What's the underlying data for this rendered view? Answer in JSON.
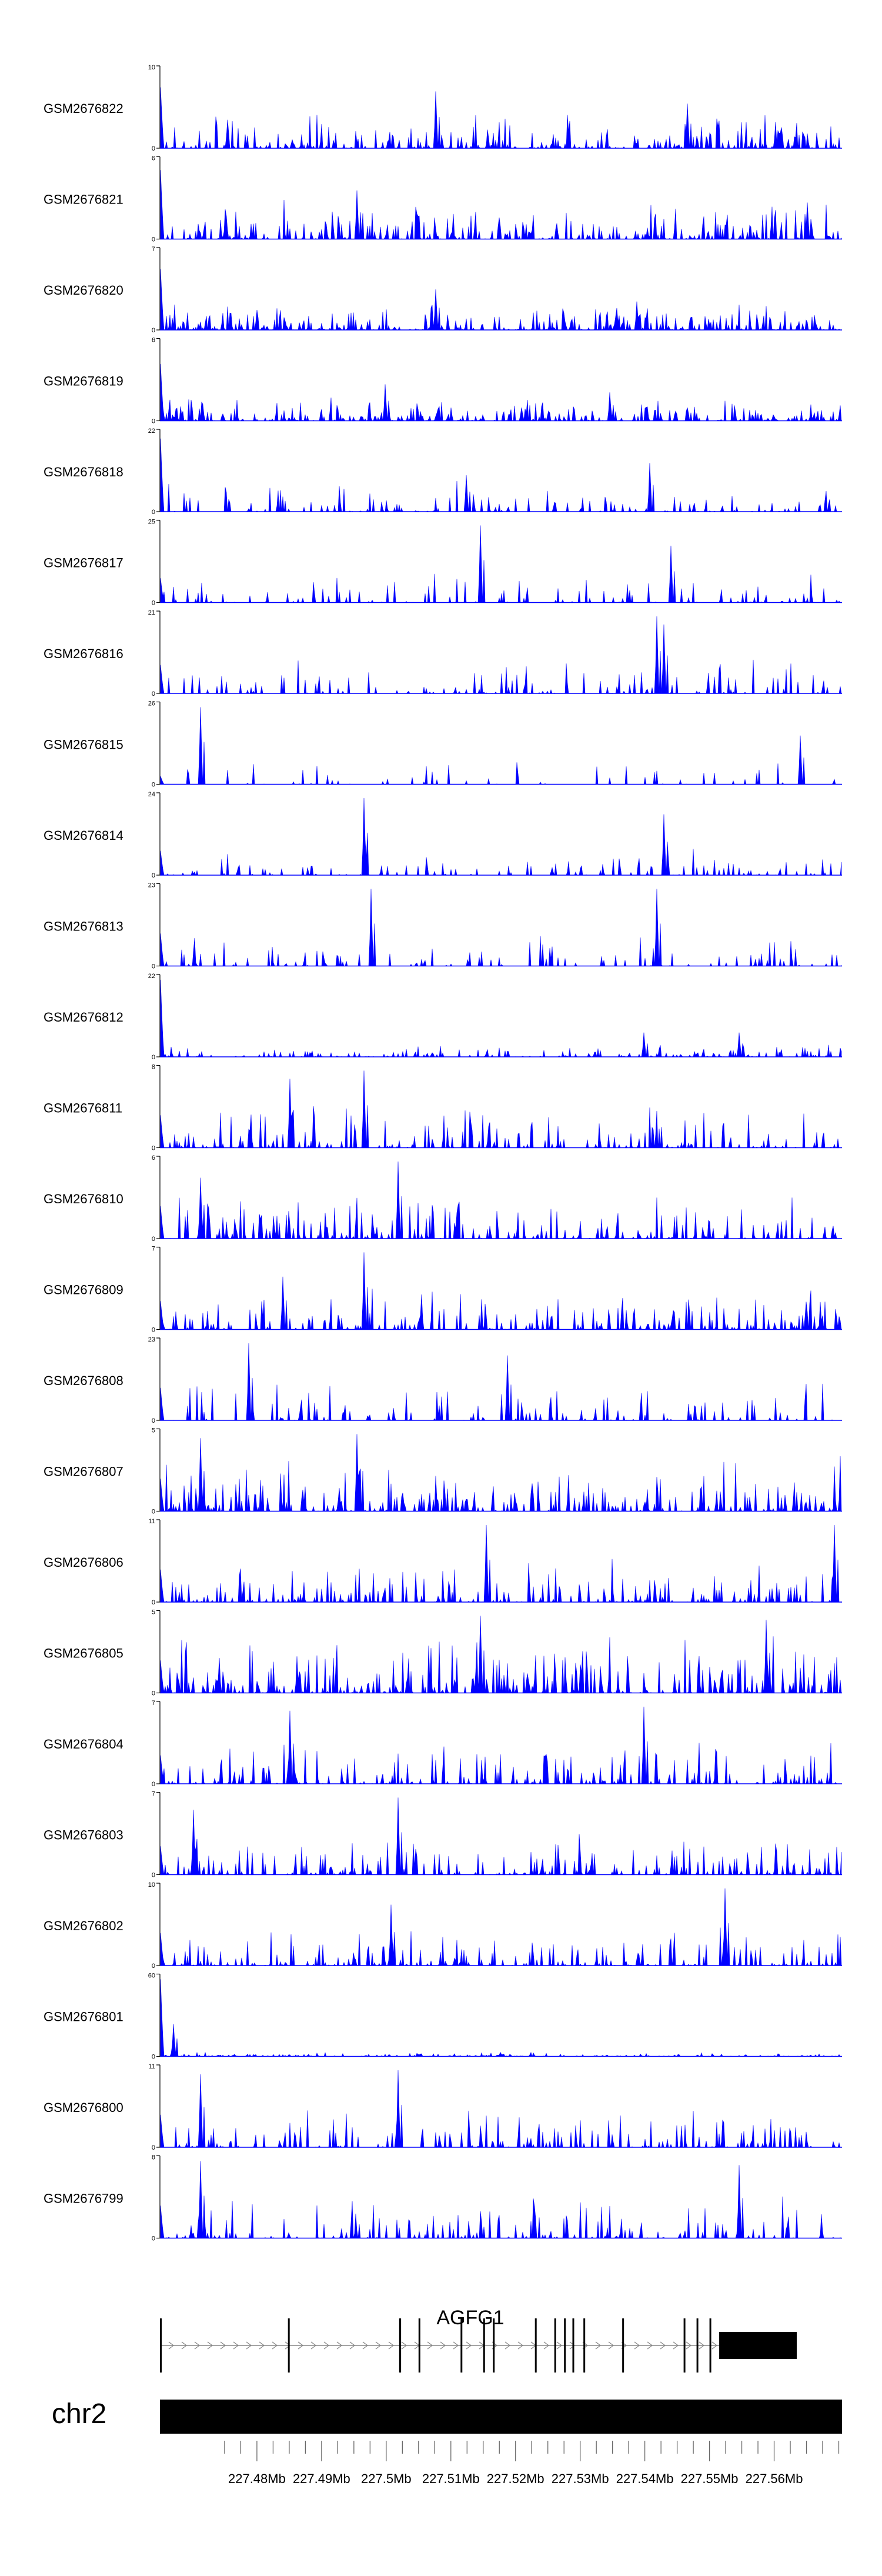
{
  "chart_data": {
    "type": "area",
    "color": "#0000ff",
    "x_unit": "Mb",
    "x_range": [
      227.465,
      227.5705
    ],
    "tracks": [
      {
        "label": "GSM2676822",
        "ymax_label": "10",
        "ymin_label": "0",
        "ymax": 10,
        "seed": 822,
        "density": 0.55,
        "scale": 0.3,
        "head": 0.75,
        "spike": [
          0.405,
          0.7,
          0.775,
          0.55
        ]
      },
      {
        "label": "GSM2676821",
        "ymax_label": "6",
        "ymin_label": "0",
        "ymax": 6,
        "seed": 821,
        "density": 0.55,
        "scale": 0.35,
        "head": 0.85,
        "spike": [
          0.29,
          0.6,
          0.95,
          0.45
        ]
      },
      {
        "label": "GSM2676820",
        "ymax_label": "7",
        "ymin_label": "0",
        "ymax": 7,
        "seed": 820,
        "density": 0.65,
        "scale": 0.25,
        "head": 0.75,
        "spike": [
          0.405,
          0.5,
          0.7,
          0.35
        ]
      },
      {
        "label": "GSM2676819",
        "ymax_label": "6",
        "ymin_label": "0",
        "ymax": 6,
        "seed": 819,
        "density": 0.6,
        "scale": 0.22,
        "head": 0.7,
        "spike": [
          0.33,
          0.45,
          0.66,
          0.35
        ]
      },
      {
        "label": "GSM2676818",
        "ymax_label": "22",
        "ymin_label": "0",
        "ymax": 22,
        "seed": 818,
        "density": 0.25,
        "scale": 0.28,
        "head": 0.9,
        "spike": [
          0.72,
          0.6,
          0.45,
          0.45
        ]
      },
      {
        "label": "GSM2676817",
        "ymax_label": "25",
        "ymin_label": "0",
        "ymax": 25,
        "seed": 817,
        "density": 0.2,
        "scale": 0.3,
        "head": 0.3,
        "spike": [
          0.47,
          0.95,
          0.75,
          0.7
        ]
      },
      {
        "label": "GSM2676816",
        "ymax_label": "21",
        "ymin_label": "0",
        "ymax": 21,
        "seed": 816,
        "density": 0.25,
        "scale": 0.3,
        "head": 0.35,
        "spike": [
          0.73,
          0.95,
          0.74,
          0.85
        ]
      },
      {
        "label": "GSM2676815",
        "ymax_label": "26",
        "ymin_label": "0",
        "ymax": 26,
        "seed": 815,
        "density": 0.12,
        "scale": 0.35,
        "head": 0.1,
        "spike": [
          0.06,
          0.95,
          0.94,
          0.6
        ]
      },
      {
        "label": "GSM2676814",
        "ymax_label": "24",
        "ymin_label": "0",
        "ymax": 24,
        "seed": 814,
        "density": 0.25,
        "scale": 0.25,
        "head": 0.3,
        "spike": [
          0.3,
          0.95,
          0.74,
          0.75
        ]
      },
      {
        "label": "GSM2676813",
        "ymax_label": "23",
        "ymin_label": "0",
        "ymax": 23,
        "seed": 813,
        "density": 0.2,
        "scale": 0.3,
        "head": 0.4,
        "spike": [
          0.31,
          0.95,
          0.73,
          0.95
        ]
      },
      {
        "label": "GSM2676812",
        "ymax_label": "22",
        "ymin_label": "0",
        "ymax": 22,
        "seed": 812,
        "density": 0.4,
        "scale": 0.12,
        "head": 0.95,
        "spike": [
          0.71,
          0.3,
          0.85,
          0.3
        ]
      },
      {
        "label": "GSM2676811",
        "ymax_label": "8",
        "ymin_label": "0",
        "ymax": 8,
        "seed": 811,
        "density": 0.35,
        "scale": 0.45,
        "head": 0.4,
        "spike": [
          0.3,
          0.95,
          0.19,
          0.85
        ]
      },
      {
        "label": "GSM2676810",
        "ymax_label": "6",
        "ymin_label": "0",
        "ymax": 6,
        "seed": 810,
        "density": 0.45,
        "scale": 0.45,
        "head": 0.4,
        "spike": [
          0.35,
          0.95,
          0.06,
          0.75
        ]
      },
      {
        "label": "GSM2676809",
        "ymax_label": "7",
        "ymin_label": "0",
        "ymax": 7,
        "seed": 809,
        "density": 0.4,
        "scale": 0.4,
        "head": 0.35,
        "spike": [
          0.3,
          0.95,
          0.18,
          0.65
        ]
      },
      {
        "label": "GSM2676808",
        "ymax_label": "23",
        "ymin_label": "0",
        "ymax": 23,
        "seed": 808,
        "density": 0.25,
        "scale": 0.35,
        "head": 0.4,
        "spike": [
          0.13,
          0.95,
          0.51,
          0.8
        ]
      },
      {
        "label": "GSM2676807",
        "ymax_label": "5",
        "ymin_label": "0",
        "ymax": 5,
        "seed": 807,
        "density": 0.5,
        "scale": 0.5,
        "head": 0.4,
        "spike": [
          0.29,
          0.95,
          0.06,
          0.9
        ]
      },
      {
        "label": "GSM2676806",
        "ymax_label": "11",
        "ymin_label": "0",
        "ymax": 11,
        "seed": 806,
        "density": 0.35,
        "scale": 0.4,
        "head": 0.4,
        "spike": [
          0.48,
          0.95,
          0.99,
          0.95
        ]
      },
      {
        "label": "GSM2676805",
        "ymax_label": "5",
        "ymin_label": "0",
        "ymax": 5,
        "seed": 805,
        "density": 0.55,
        "scale": 0.55,
        "head": 0.4,
        "spike": [
          0.47,
          0.95,
          0.89,
          0.9
        ]
      },
      {
        "label": "GSM2676804",
        "ymax_label": "7",
        "ymin_label": "0",
        "ymax": 7,
        "seed": 804,
        "density": 0.4,
        "scale": 0.4,
        "head": 0.35,
        "spike": [
          0.71,
          0.95,
          0.19,
          0.9
        ]
      },
      {
        "label": "GSM2676803",
        "ymax_label": "7",
        "ymin_label": "0",
        "ymax": 7,
        "seed": 803,
        "density": 0.4,
        "scale": 0.4,
        "head": 0.35,
        "spike": [
          0.35,
          0.95,
          0.05,
          0.8
        ]
      },
      {
        "label": "GSM2676802",
        "ymax_label": "10",
        "ymin_label": "0",
        "ymax": 10,
        "seed": 802,
        "density": 0.4,
        "scale": 0.35,
        "head": 0.4,
        "spike": [
          0.83,
          0.95,
          0.34,
          0.75
        ]
      },
      {
        "label": "GSM2676801",
        "ymax_label": "60",
        "ymin_label": "0",
        "ymax": 60,
        "seed": 801,
        "density": 0.5,
        "scale": 0.04,
        "head": 0.95,
        "spike": [
          0.02,
          0.4,
          0.5,
          0.05
        ]
      },
      {
        "label": "GSM2676800",
        "ymax_label": "11",
        "ymin_label": "0",
        "ymax": 11,
        "seed": 800,
        "density": 0.35,
        "scale": 0.35,
        "head": 0.4,
        "spike": [
          0.35,
          0.95,
          0.06,
          0.9
        ]
      },
      {
        "label": "GSM2676799",
        "ymax_label": "8",
        "ymin_label": "0",
        "ymax": 8,
        "seed": 799,
        "density": 0.35,
        "scale": 0.4,
        "head": 0.4,
        "spike": [
          0.06,
          0.95,
          0.85,
          0.9
        ]
      }
    ],
    "gene": {
      "name": "AGFG1",
      "start": 227.465,
      "end": 227.5635,
      "strand": "+",
      "exons": [
        {
          "start": 227.465,
          "end": 227.4652
        },
        {
          "start": 227.4848,
          "end": 227.485
        },
        {
          "start": 227.502,
          "end": 227.5023
        },
        {
          "start": 227.505,
          "end": 227.5052
        },
        {
          "start": 227.5115,
          "end": 227.5117
        },
        {
          "start": 227.515,
          "end": 227.5152
        },
        {
          "start": 227.5165,
          "end": 227.5167
        },
        {
          "start": 227.523,
          "end": 227.5232
        },
        {
          "start": 227.526,
          "end": 227.5262
        },
        {
          "start": 227.5275,
          "end": 227.5277
        },
        {
          "start": 227.5288,
          "end": 227.529
        },
        {
          "start": 227.5305,
          "end": 227.5307
        },
        {
          "start": 227.5365,
          "end": 227.5367
        },
        {
          "start": 227.546,
          "end": 227.5462
        },
        {
          "start": 227.548,
          "end": 227.5482
        },
        {
          "start": 227.55,
          "end": 227.5502
        },
        {
          "start": 227.5515,
          "end": 227.5635
        }
      ]
    },
    "chromosome": {
      "label": "chr2",
      "ticks": [
        {
          "pos": 227.475,
          "label": ""
        },
        {
          "pos": 227.4775,
          "label": ""
        },
        {
          "pos": 227.48,
          "label": "227.48Mb"
        },
        {
          "pos": 227.4825,
          "label": ""
        },
        {
          "pos": 227.485,
          "label": ""
        },
        {
          "pos": 227.4875,
          "label": ""
        },
        {
          "pos": 227.49,
          "label": "227.49Mb"
        },
        {
          "pos": 227.4925,
          "label": ""
        },
        {
          "pos": 227.495,
          "label": ""
        },
        {
          "pos": 227.4975,
          "label": ""
        },
        {
          "pos": 227.5,
          "label": "227.5Mb"
        },
        {
          "pos": 227.5025,
          "label": ""
        },
        {
          "pos": 227.505,
          "label": ""
        },
        {
          "pos": 227.5075,
          "label": ""
        },
        {
          "pos": 227.51,
          "label": "227.51Mb"
        },
        {
          "pos": 227.5125,
          "label": ""
        },
        {
          "pos": 227.515,
          "label": ""
        },
        {
          "pos": 227.5175,
          "label": ""
        },
        {
          "pos": 227.52,
          "label": "227.52Mb"
        },
        {
          "pos": 227.5225,
          "label": ""
        },
        {
          "pos": 227.525,
          "label": ""
        },
        {
          "pos": 227.5275,
          "label": ""
        },
        {
          "pos": 227.53,
          "label": "227.53Mb"
        },
        {
          "pos": 227.5325,
          "label": ""
        },
        {
          "pos": 227.535,
          "label": ""
        },
        {
          "pos": 227.5375,
          "label": ""
        },
        {
          "pos": 227.54,
          "label": "227.54Mb"
        },
        {
          "pos": 227.5425,
          "label": ""
        },
        {
          "pos": 227.545,
          "label": ""
        },
        {
          "pos": 227.5475,
          "label": ""
        },
        {
          "pos": 227.55,
          "label": "227.55Mb"
        },
        {
          "pos": 227.5525,
          "label": ""
        },
        {
          "pos": 227.555,
          "label": ""
        },
        {
          "pos": 227.5575,
          "label": ""
        },
        {
          "pos": 227.56,
          "label": "227.56Mb"
        },
        {
          "pos": 227.5625,
          "label": ""
        },
        {
          "pos": 227.565,
          "label": ""
        },
        {
          "pos": 227.5675,
          "label": ""
        },
        {
          "pos": 227.57,
          "label": ""
        }
      ]
    }
  }
}
